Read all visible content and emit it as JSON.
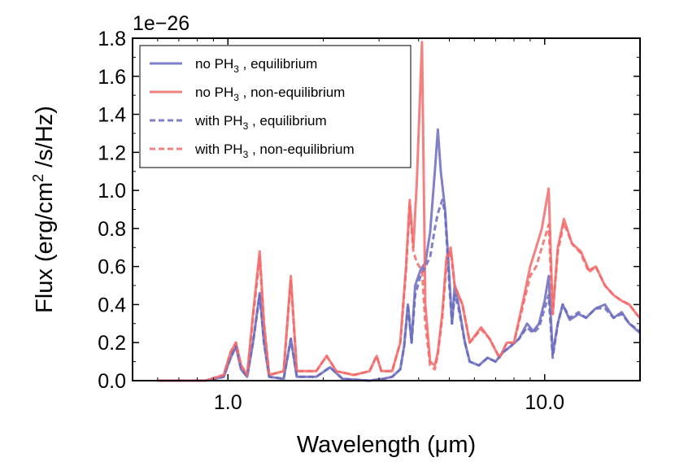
{
  "chart_data": {
    "type": "line",
    "title": "",
    "xlabel": "Wavelength (μm)",
    "ylabel_main": "Flux (erg/cm",
    "ylabel_sup": "2",
    "ylabel_tail": " /s/Hz)",
    "y_offset_text": "1e−26",
    "x_scale": "log",
    "xlim": [
      0.5,
      20
    ],
    "ylim": [
      0.0,
      1.8
    ],
    "x_ticks": [
      1.0,
      10.0
    ],
    "x_tick_labels": [
      "1.0",
      "10.0"
    ],
    "y_ticks": [
      0.0,
      0.2,
      0.4,
      0.6,
      0.8,
      1.0,
      1.2,
      1.4,
      1.6,
      1.8
    ],
    "y_tick_labels": [
      "0.0",
      "0.2",
      "0.4",
      "0.6",
      "0.8",
      "1.0",
      "1.2",
      "1.4",
      "1.6",
      "1.8"
    ],
    "grid": false,
    "legend_position": "top-left",
    "series": [
      {
        "name_prefix": "no PH",
        "name_sub": "3",
        "name_suffix": ", equilibrium",
        "color": "#6b6bbf",
        "dash": "solid",
        "points": [
          [
            0.6,
            0.0
          ],
          [
            0.85,
            0.0
          ],
          [
            0.97,
            0.02
          ],
          [
            1.02,
            0.12
          ],
          [
            1.06,
            0.18
          ],
          [
            1.1,
            0.06
          ],
          [
            1.15,
            0.02
          ],
          [
            1.2,
            0.2
          ],
          [
            1.26,
            0.46
          ],
          [
            1.3,
            0.2
          ],
          [
            1.35,
            0.02
          ],
          [
            1.5,
            0.01
          ],
          [
            1.58,
            0.22
          ],
          [
            1.65,
            0.02
          ],
          [
            1.9,
            0.02
          ],
          [
            2.1,
            0.07
          ],
          [
            2.3,
            0.01
          ],
          [
            2.8,
            0.0
          ],
          [
            3.1,
            0.01
          ],
          [
            3.3,
            0.02
          ],
          [
            3.5,
            0.06
          ],
          [
            3.6,
            0.18
          ],
          [
            3.7,
            0.4
          ],
          [
            3.8,
            0.2
          ],
          [
            3.9,
            0.5
          ],
          [
            4.05,
            0.58
          ],
          [
            4.2,
            0.62
          ],
          [
            4.35,
            0.78
          ],
          [
            4.5,
            1.1
          ],
          [
            4.6,
            1.32
          ],
          [
            4.7,
            1.1
          ],
          [
            4.85,
            0.9
          ],
          [
            5.0,
            0.55
          ],
          [
            5.1,
            0.3
          ],
          [
            5.2,
            0.5
          ],
          [
            5.35,
            0.4
          ],
          [
            5.6,
            0.2
          ],
          [
            5.8,
            0.1
          ],
          [
            6.2,
            0.08
          ],
          [
            6.6,
            0.12
          ],
          [
            7.0,
            0.1
          ],
          [
            7.4,
            0.15
          ],
          [
            7.8,
            0.18
          ],
          [
            8.3,
            0.22
          ],
          [
            8.8,
            0.3
          ],
          [
            9.2,
            0.26
          ],
          [
            9.6,
            0.3
          ],
          [
            10.0,
            0.42
          ],
          [
            10.3,
            0.55
          ],
          [
            10.6,
            0.14
          ],
          [
            11.0,
            0.3
          ],
          [
            11.4,
            0.4
          ],
          [
            12.0,
            0.32
          ],
          [
            12.8,
            0.35
          ],
          [
            13.5,
            0.33
          ],
          [
            14.5,
            0.38
          ],
          [
            15.5,
            0.4
          ],
          [
            16.5,
            0.33
          ],
          [
            17.5,
            0.36
          ],
          [
            18.5,
            0.3
          ],
          [
            20.0,
            0.25
          ]
        ]
      },
      {
        "name_prefix": "no PH",
        "name_sub": "3",
        "name_suffix": ", non-equilibrium",
        "color": "#f26a6a",
        "dash": "solid",
        "points": [
          [
            0.6,
            0.0
          ],
          [
            0.85,
            0.0
          ],
          [
            0.97,
            0.03
          ],
          [
            1.02,
            0.15
          ],
          [
            1.06,
            0.2
          ],
          [
            1.1,
            0.08
          ],
          [
            1.15,
            0.03
          ],
          [
            1.2,
            0.35
          ],
          [
            1.26,
            0.68
          ],
          [
            1.3,
            0.3
          ],
          [
            1.35,
            0.03
          ],
          [
            1.5,
            0.05
          ],
          [
            1.58,
            0.55
          ],
          [
            1.65,
            0.05
          ],
          [
            1.9,
            0.05
          ],
          [
            2.05,
            0.13
          ],
          [
            2.2,
            0.05
          ],
          [
            2.5,
            0.03
          ],
          [
            2.8,
            0.05
          ],
          [
            2.95,
            0.13
          ],
          [
            3.05,
            0.05
          ],
          [
            3.3,
            0.05
          ],
          [
            3.5,
            0.2
          ],
          [
            3.65,
            0.6
          ],
          [
            3.75,
            0.95
          ],
          [
            3.85,
            0.7
          ],
          [
            3.95,
            1.05
          ],
          [
            4.1,
            1.78
          ],
          [
            4.2,
            0.4
          ],
          [
            4.35,
            0.1
          ],
          [
            4.5,
            0.08
          ],
          [
            4.6,
            0.15
          ],
          [
            4.75,
            0.35
          ],
          [
            4.9,
            0.65
          ],
          [
            5.05,
            0.7
          ],
          [
            5.2,
            0.5
          ],
          [
            5.5,
            0.4
          ],
          [
            5.8,
            0.2
          ],
          [
            6.3,
            0.28
          ],
          [
            6.7,
            0.22
          ],
          [
            7.2,
            0.12
          ],
          [
            7.6,
            0.2
          ],
          [
            8.0,
            0.2
          ],
          [
            8.5,
            0.4
          ],
          [
            9.0,
            0.6
          ],
          [
            9.4,
            0.7
          ],
          [
            9.8,
            0.8
          ],
          [
            10.3,
            1.01
          ],
          [
            10.6,
            0.35
          ],
          [
            11.0,
            0.7
          ],
          [
            11.5,
            0.85
          ],
          [
            12.2,
            0.72
          ],
          [
            13.0,
            0.68
          ],
          [
            13.8,
            0.58
          ],
          [
            14.5,
            0.6
          ],
          [
            15.5,
            0.5
          ],
          [
            16.5,
            0.45
          ],
          [
            17.5,
            0.42
          ],
          [
            18.5,
            0.4
          ],
          [
            19.5,
            0.35
          ],
          [
            20.0,
            0.33
          ]
        ]
      },
      {
        "name_prefix": "with PH",
        "name_sub": "3",
        "name_suffix": ", equilibrium",
        "color": "#6b6bbf",
        "dash": "dashed",
        "points": [
          [
            0.6,
            0.0
          ],
          [
            0.85,
            0.0
          ],
          [
            0.97,
            0.02
          ],
          [
            1.02,
            0.12
          ],
          [
            1.06,
            0.18
          ],
          [
            1.1,
            0.06
          ],
          [
            1.15,
            0.02
          ],
          [
            1.2,
            0.2
          ],
          [
            1.26,
            0.45
          ],
          [
            1.3,
            0.2
          ],
          [
            1.35,
            0.02
          ],
          [
            1.5,
            0.01
          ],
          [
            1.58,
            0.22
          ],
          [
            1.65,
            0.02
          ],
          [
            1.9,
            0.02
          ],
          [
            2.1,
            0.07
          ],
          [
            2.3,
            0.01
          ],
          [
            2.8,
            0.0
          ],
          [
            3.1,
            0.01
          ],
          [
            3.3,
            0.02
          ],
          [
            3.5,
            0.06
          ],
          [
            3.6,
            0.18
          ],
          [
            3.7,
            0.4
          ],
          [
            3.8,
            0.2
          ],
          [
            3.9,
            0.45
          ],
          [
            4.05,
            0.55
          ],
          [
            4.2,
            0.6
          ],
          [
            4.35,
            0.65
          ],
          [
            4.5,
            0.8
          ],
          [
            4.6,
            0.88
          ],
          [
            4.75,
            0.95
          ],
          [
            4.85,
            0.88
          ],
          [
            5.0,
            0.5
          ],
          [
            5.1,
            0.3
          ],
          [
            5.2,
            0.45
          ],
          [
            5.35,
            0.38
          ],
          [
            5.6,
            0.2
          ],
          [
            5.8,
            0.1
          ],
          [
            6.2,
            0.08
          ],
          [
            6.6,
            0.12
          ],
          [
            7.0,
            0.1
          ],
          [
            7.4,
            0.15
          ],
          [
            7.8,
            0.18
          ],
          [
            8.3,
            0.22
          ],
          [
            8.8,
            0.28
          ],
          [
            9.2,
            0.25
          ],
          [
            9.6,
            0.28
          ],
          [
            10.0,
            0.38
          ],
          [
            10.3,
            0.45
          ],
          [
            10.6,
            0.12
          ],
          [
            11.0,
            0.3
          ],
          [
            11.4,
            0.4
          ],
          [
            12.0,
            0.33
          ],
          [
            12.8,
            0.36
          ],
          [
            13.5,
            0.33
          ],
          [
            14.5,
            0.38
          ],
          [
            15.5,
            0.38
          ],
          [
            16.5,
            0.33
          ],
          [
            17.5,
            0.35
          ],
          [
            18.5,
            0.3
          ],
          [
            20.0,
            0.26
          ]
        ]
      },
      {
        "name_prefix": "with PH",
        "name_sub": "3",
        "name_suffix": ", non-equilibrium",
        "color": "#f26a6a",
        "dash": "dashed",
        "points": [
          [
            0.6,
            0.0
          ],
          [
            0.85,
            0.0
          ],
          [
            0.97,
            0.03
          ],
          [
            1.02,
            0.15
          ],
          [
            1.06,
            0.2
          ],
          [
            1.1,
            0.08
          ],
          [
            1.15,
            0.03
          ],
          [
            1.2,
            0.33
          ],
          [
            1.26,
            0.65
          ],
          [
            1.3,
            0.3
          ],
          [
            1.35,
            0.03
          ],
          [
            1.5,
            0.05
          ],
          [
            1.58,
            0.53
          ],
          [
            1.65,
            0.05
          ],
          [
            1.9,
            0.05
          ],
          [
            2.05,
            0.13
          ],
          [
            2.2,
            0.05
          ],
          [
            2.5,
            0.03
          ],
          [
            2.8,
            0.05
          ],
          [
            2.95,
            0.13
          ],
          [
            3.05,
            0.05
          ],
          [
            3.3,
            0.05
          ],
          [
            3.5,
            0.2
          ],
          [
            3.65,
            0.58
          ],
          [
            3.75,
            0.92
          ],
          [
            3.85,
            0.68
          ],
          [
            3.95,
            0.62
          ],
          [
            4.1,
            0.58
          ],
          [
            4.2,
            0.3
          ],
          [
            4.35,
            0.08
          ],
          [
            4.5,
            0.06
          ],
          [
            4.6,
            0.14
          ],
          [
            4.75,
            0.33
          ],
          [
            4.9,
            0.62
          ],
          [
            5.05,
            0.68
          ],
          [
            5.2,
            0.5
          ],
          [
            5.5,
            0.4
          ],
          [
            5.8,
            0.2
          ],
          [
            6.3,
            0.27
          ],
          [
            6.7,
            0.22
          ],
          [
            7.2,
            0.12
          ],
          [
            7.6,
            0.2
          ],
          [
            8.0,
            0.2
          ],
          [
            8.5,
            0.38
          ],
          [
            9.0,
            0.55
          ],
          [
            9.4,
            0.6
          ],
          [
            9.8,
            0.7
          ],
          [
            10.3,
            0.82
          ],
          [
            10.6,
            0.35
          ],
          [
            11.0,
            0.68
          ],
          [
            11.5,
            0.83
          ],
          [
            12.2,
            0.72
          ],
          [
            13.0,
            0.67
          ],
          [
            13.8,
            0.57
          ],
          [
            14.5,
            0.6
          ],
          [
            15.5,
            0.5
          ],
          [
            16.5,
            0.45
          ],
          [
            17.5,
            0.42
          ],
          [
            18.5,
            0.4
          ],
          [
            19.5,
            0.35
          ],
          [
            20.0,
            0.33
          ]
        ]
      }
    ]
  }
}
